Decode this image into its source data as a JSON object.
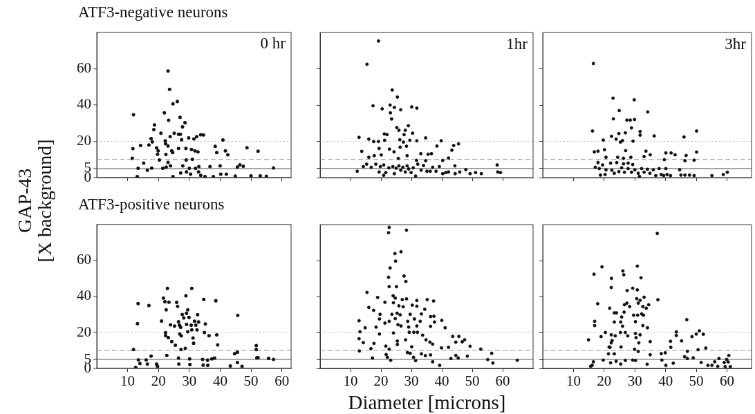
{
  "chart_data": [
    {
      "type": "scatter",
      "title": "ATF3-negative neurons",
      "ylabel": "GAP-43\n[X background]",
      "annotations": [
        "0 hr"
      ],
      "xlim": [
        0,
        63
      ],
      "ylim": [
        0,
        80
      ],
      "xticks": [
        10,
        20,
        30,
        40,
        50,
        60
      ],
      "yticks": [
        0,
        5,
        20,
        40,
        60
      ],
      "tick_labels": "y",
      "marker": "circle",
      "ref_lines": [
        {
          "axis": "y",
          "value": 5,
          "color": "#555555",
          "line_style": "solid"
        },
        {
          "axis": "y",
          "value": 10,
          "color": "#999999",
          "line_style": "dashed"
        },
        {
          "axis": "y",
          "value": 20,
          "color": "#bbbbbb",
          "line_style": "dotted"
        }
      ],
      "series": [
        {
          "color": "#111111",
          "x": [
            11.9,
            11.7,
            11.5,
            13.4,
            13.1,
            14.2,
            15.2,
            16.4,
            16.9,
            17.6,
            18,
            17.8,
            18.7,
            18.5,
            19.4,
            19.7,
            19.9,
            20.3,
            20.8,
            21.4,
            21.9,
            22.2,
            22.3,
            22.4,
            22.5,
            23.1,
            23.6,
            23.3,
            23.1,
            23.1,
            23.8,
            23.9,
            24.3,
            24.6,
            24.7,
            24.7,
            25.1,
            26.1,
            26.5,
            26.5,
            27,
            27.1,
            27.5,
            27.8,
            27.9,
            27.2,
            28.6,
            28.9,
            29,
            29.1,
            29.8,
            30,
            30.4,
            30.7,
            31,
            31.5,
            31.8,
            32,
            32.4,
            32.8,
            33,
            33.1,
            33.7,
            34.6,
            33.7,
            35.1,
            36.7,
            37.8,
            38.4,
            38.9,
            40.2,
            40.9,
            40,
            42,
            41.7,
            42.5,
            44.9,
            45.6,
            46.4,
            47.5,
            48.7,
            52.3,
            57.3,
            50,
            53,
            55
          ],
          "values": [
            34.6,
            16,
            10.7,
            5.2,
            0.6,
            17.7,
            8,
            4.1,
            18,
            21.5,
            19.7,
            5.3,
            29,
            26.5,
            16.4,
            12.9,
            14.8,
            9.7,
            24.5,
            5.2,
            35.7,
            20.3,
            18.7,
            12.8,
            5.8,
            58.7,
            48.6,
            31.6,
            17.4,
            8.4,
            22.6,
            6.5,
            14.8,
            13.8,
            40.6,
            0.6,
            24.5,
            41.9,
            23.9,
            16.1,
            33.2,
            23.9,
            20.9,
            28,
            6.5,
            2.6,
            30.3,
            16.1,
            9.7,
            3.2,
            21.9,
            5.2,
            1.9,
            15.5,
            10.1,
            21.3,
            14.8,
            5.2,
            22.6,
            14.2,
            3.2,
            6.1,
            23.6,
            23.5,
            1.3,
            0.6,
            6.1,
            0.6,
            17.2,
            13.8,
            1.9,
            20.8,
            6.5,
            1.9,
            14.8,
            12.6,
            0.9,
            5.8,
            7.1,
            6.3,
            16.5,
            14.6,
            5.4,
            1,
            1,
            0.8
          ]
        }
      ]
    },
    {
      "type": "scatter",
      "annotations": [
        "1hr"
      ],
      "xlim": [
        0,
        70
      ],
      "ylim": [
        0,
        80
      ],
      "xticks": [
        10,
        20,
        30,
        40,
        50,
        60
      ],
      "yticks": [
        0,
        5,
        20,
        40,
        60
      ],
      "tick_labels": false,
      "marker": "circle",
      "ref_lines": [
        {
          "axis": "y",
          "value": 5,
          "color": "#555555",
          "line_style": "solid"
        },
        {
          "axis": "y",
          "value": 10,
          "color": "#999999",
          "line_style": "dashed"
        },
        {
          "axis": "y",
          "value": 20,
          "color": "#bbbbbb",
          "line_style": "dotted"
        }
      ],
      "series": [
        {
          "color": "#111111",
          "x": [
            19.2,
            15.4,
            23.7,
            25.4,
            17.4,
            20.4,
            23,
            24.4,
            26.5,
            30.1,
            31.8,
            23.1,
            23.5,
            25.2,
            25.9,
            28,
            29,
            27.6,
            30.4,
            21.1,
            22,
            12.8,
            16,
            17.6,
            19.2,
            21.2,
            26.2,
            27.4,
            29.5,
            31.8,
            34.7,
            39.8,
            38.4,
            43.9,
            45.5,
            13.7,
            19.4,
            22.8,
            26.3,
            28.4,
            33.1,
            35.5,
            36.6,
            43.3,
            16,
            17.8,
            20.1,
            24.3,
            25.7,
            28.6,
            31.7,
            34.7,
            40.3,
            42.2,
            14.2,
            15.3,
            16.8,
            18.3,
            19.8,
            20.9,
            21.6,
            22.6,
            23.9,
            24.4,
            25,
            25.9,
            26.5,
            27.2,
            28,
            28.6,
            29.1,
            29.9,
            30.6,
            31.4,
            32.1,
            33.2,
            34,
            35.1,
            36.2,
            37,
            38.1,
            39.2,
            40.3,
            41.3,
            42.2,
            44.3,
            44.4,
            45.9,
            47.9,
            49.3,
            51.1,
            53,
            58.2,
            58.4,
            59.3,
            12.2,
            19.4,
            20.9
          ],
          "values": [
            75.3,
            62.5,
            48.3,
            44.4,
            39.6,
            37.9,
            40,
            38.7,
            37.4,
            39,
            38.3,
            35.7,
            32.3,
            27.6,
            26.1,
            26.1,
            28.6,
            23.7,
            24.5,
            24.1,
            23.7,
            22.2,
            21.2,
            19.9,
            19.9,
            20.6,
            20.9,
            19.6,
            20.6,
            20.3,
            21.9,
            20.3,
            17.4,
            17.7,
            18.6,
            14.5,
            16.1,
            15.7,
            16.8,
            17.3,
            13.2,
            12.9,
            13.2,
            15.1,
            11.2,
            12.1,
            12.5,
            14.2,
            10.6,
            12.1,
            9.5,
            9.3,
            9.5,
            10.8,
            6.1,
            7.4,
            5.7,
            7.4,
            6.1,
            7,
            2.8,
            5.4,
            6.1,
            2.2,
            5.2,
            6.5,
            4.1,
            5.7,
            3.1,
            6.5,
            4.8,
            2.8,
            5.4,
            0.9,
            7.4,
            4.1,
            6.7,
            3.5,
            3.5,
            5.7,
            3.5,
            6.1,
            2.2,
            2.8,
            3.1,
            6.5,
            2.2,
            3.1,
            4.4,
            2.2,
            2.8,
            2.2,
            7,
            3.1,
            2.8,
            3.5,
            3.1,
            1.3
          ]
        }
      ]
    },
    {
      "type": "scatter",
      "annotations": [
        "3hr"
      ],
      "xlim": [
        0,
        68
      ],
      "ylim": [
        0,
        80
      ],
      "xticks": [
        10,
        20,
        30,
        40,
        50,
        60
      ],
      "yticks": [
        0,
        5,
        20,
        40,
        60
      ],
      "tick_labels": false,
      "marker": "circle",
      "ref_lines": [
        {
          "axis": "y",
          "value": 5,
          "color": "#555555",
          "line_style": "solid"
        },
        {
          "axis": "y",
          "value": 10,
          "color": "#999999",
          "line_style": "dashed"
        },
        {
          "axis": "y",
          "value": 20,
          "color": "#bbbbbb",
          "line_style": "dotted"
        }
      ],
      "series": [
        {
          "color": "#111111",
          "x": [
            16.5,
            22.9,
            29.8,
            24.9,
            34.2,
            23,
            27.4,
            28.5,
            29.9,
            28.9,
            31.7,
            31.7,
            16.2,
            26.9,
            24.8,
            22.4,
            23.9,
            26,
            19.7,
            25.3,
            29.4,
            36.3,
            46,
            50.1,
            20.1,
            16.8,
            18,
            27,
            33.6,
            35,
            40.1,
            41.8,
            43.1,
            50.1,
            20.6,
            24.4,
            26.3,
            28.7,
            33,
            39.6,
            46.7,
            46.3,
            49.3,
            18,
            19.5,
            22.1,
            24.1,
            26.3,
            27.8,
            29.3,
            17.1,
            18.4,
            20.6,
            22.5,
            23.3,
            24.8,
            25.7,
            26.6,
            27.8,
            28.9,
            30,
            31.1,
            32.2,
            33,
            34.1,
            34.9,
            36,
            36.8,
            37.9,
            38.6,
            39.4,
            40.1,
            40.5,
            41.6,
            44.6,
            45,
            46.3,
            47.8,
            49.3,
            55.1,
            58.8,
            60.1,
            18.8,
            20.3,
            31.5
          ],
          "values": [
            62.9,
            43.8,
            42.9,
            37,
            36.2,
            32.4,
            31.7,
            31.7,
            32,
            27.4,
            25.4,
            23.4,
            25.7,
            24.7,
            24.3,
            22.8,
            21.2,
            20.4,
            20.7,
            19.6,
            20.1,
            23,
            22.4,
            25.7,
            15.4,
            14.2,
            14.6,
            14.9,
            14.6,
            12.6,
            13.6,
            13.6,
            12.6,
            14.1,
            11.2,
            11.2,
            10.7,
            11.2,
            11.6,
            9.9,
            12.2,
            9.3,
            9.6,
            8.3,
            7,
            8,
            8.3,
            7.6,
            8,
            7.2,
            5.7,
            5,
            4.3,
            4.1,
            2.4,
            3.3,
            5.4,
            3,
            5,
            3,
            4.3,
            2.4,
            5,
            3,
            4.6,
            2.4,
            4.3,
            1.1,
            5,
            1.7,
            1.1,
            5,
            1.7,
            1.1,
            4.3,
            1.4,
            1.4,
            1.4,
            1.1,
            1.1,
            1.7,
            3,
            1.4,
            1.7,
            0.7
          ]
        }
      ]
    },
    {
      "type": "scatter",
      "title": "ATF3-positive neurons",
      "xlim": [
        0,
        63
      ],
      "ylim": [
        0,
        80
      ],
      "xticks": [
        10,
        20,
        30,
        40,
        50,
        60
      ],
      "yticks": [
        0,
        5,
        20,
        40,
        60
      ],
      "marker": "circle",
      "ref_lines": [
        {
          "axis": "y",
          "value": 5,
          "color": "#555555",
          "line_style": "solid"
        },
        {
          "axis": "y",
          "value": 10,
          "color": "#999999",
          "line_style": "dashed"
        },
        {
          "axis": "y",
          "value": 20,
          "color": "#bbbbbb",
          "line_style": "dotted"
        }
      ],
      "series": [
        {
          "color": "#111111",
          "x": [
            11.9,
            13.4,
            13.2,
            13.5,
            14,
            12.6,
            16,
            16.4,
            17.6,
            16.9,
            19.4,
            19.7,
            21,
            21.6,
            22.1,
            22.9,
            23.4,
            22.5,
            22.3,
            22.3,
            22.7,
            23.2,
            23.9,
            24.3,
            25.2,
            25.5,
            25.9,
            26.2,
            26.5,
            26.8,
            27.2,
            26.5,
            26.6,
            26.9,
            27.4,
            27.3,
            27.7,
            28.2,
            28.7,
            28.9,
            29.1,
            29.5,
            29.1,
            29.5,
            29.9,
            30.2,
            30.1,
            30.6,
            30.8,
            30.8,
            31.2,
            31.4,
            31.7,
            32.1,
            32.5,
            32.7,
            33,
            34.3,
            34.5,
            34.7,
            34.9,
            35.2,
            35.9,
            36,
            36.4,
            37.3,
            38.2,
            38.6,
            38.9,
            39.2,
            43.3,
            44.7,
            45.6,
            45.7,
            45.6,
            47.1,
            51.7,
            51.7,
            51.9,
            52.3,
            55.7,
            57.3
          ],
          "values": [
            10.5,
            36,
            24.9,
            4.7,
            2.7,
            0.5,
            4.7,
            2.4,
            6.9,
            35,
            2.4,
            1.2,
            26.3,
            39.1,
            37.1,
            44.5,
            36.8,
            32.6,
            19.9,
            18.2,
            7.2,
            17.1,
            24.2,
            14.9,
            23.5,
            12.9,
            36.7,
            34.5,
            25.9,
            24,
            22.9,
            5.8,
            2.4,
            19.1,
            18.1,
            10.5,
            30,
            28.1,
            11.2,
            40.3,
            24.5,
            20.4,
            30.6,
            32.6,
            28.3,
            2.2,
            5.3,
            24,
            21.4,
            44.5,
            16.9,
            14,
            26.2,
            24,
            21.4,
            29.9,
            25.8,
            5,
            1.9,
            38.3,
            20,
            24.7,
            4.6,
            1.8,
            18.2,
            5.3,
            5.8,
            37.6,
            18.7,
            13.1,
            1.4,
            8.2,
            9.1,
            29.5,
            3.3,
            1.2,
            12.7,
            10.5,
            5.9,
            6,
            5.6,
            5
          ]
        }
      ]
    },
    {
      "type": "scatter",
      "xlabel": "Diameter [microns]",
      "xlim": [
        0,
        70
      ],
      "ylim": [
        0,
        80
      ],
      "xticks": [
        10,
        20,
        30,
        40,
        50,
        60
      ],
      "yticks": [
        0,
        5,
        20,
        40,
        60
      ],
      "tick_labels": "x",
      "marker": "circle",
      "ref_lines": [
        {
          "axis": "y",
          "value": 5,
          "color": "#555555",
          "line_style": "solid"
        },
        {
          "axis": "y",
          "value": 10,
          "color": "#999999",
          "line_style": "dashed"
        },
        {
          "axis": "y",
          "value": 20,
          "color": "#bbbbbb",
          "line_style": "dotted"
        }
      ],
      "series": [
        {
          "color": "#111111",
          "x": [
            22.7,
            22.5,
            28.4,
            26.6,
            24.6,
            24.8,
            23,
            22.5,
            27.6,
            28.2,
            22.7,
            25.1,
            15.4,
            18.9,
            24,
            24.7,
            27,
            28.4,
            21.3,
            31.8,
            35.2,
            37.3,
            16,
            17.6,
            24.1,
            25.9,
            27.3,
            30.3,
            31.8,
            34.4,
            19.7,
            23.6,
            25.3,
            26.3,
            29.6,
            33.3,
            36.3,
            37.4,
            12.8,
            19.5,
            22.7,
            24.7,
            28.8,
            31,
            32.9,
            37.6,
            40,
            21.3,
            25.6,
            26.6,
            29.1,
            18.4,
            31.8,
            36.3,
            41.1,
            14.8,
            13.1,
            24.1,
            29.3,
            30.8,
            32,
            33.7,
            19.5,
            43.6,
            45.6,
            44.6,
            46.7,
            47.5,
            12.8,
            14.2,
            25.4,
            28.1,
            34.8,
            36.1,
            37,
            21.6,
            17.7,
            25.4,
            30.1,
            49.3,
            39.9,
            42.2,
            52.8,
            12.9,
            16.7,
            22.7,
            28.7,
            29.6,
            33.3,
            34.6,
            36.3,
            44.6,
            56.4,
            17.2,
            21.7,
            22.1,
            23.2,
            30.7,
            31.4,
            37,
            39.3,
            43,
            45.4,
            48.4,
            55.1,
            56.8,
            64.8
          ],
          "values": [
            78.5,
            75.5,
            76.9,
            64.9,
            63.9,
            59.7,
            55.9,
            50.7,
            51.4,
            48.4,
            45.5,
            45.5,
            42.3,
            39.5,
            40.4,
            39.1,
            38.3,
            38.7,
            36.8,
            37.8,
            38.3,
            37.5,
            33.9,
            32.3,
            36.5,
            34.8,
            34.3,
            35.2,
            34.6,
            32.9,
            30.1,
            30.1,
            30.7,
            29.8,
            30.1,
            30.3,
            28.8,
            29,
            26.5,
            27.5,
            26.2,
            27.7,
            26.2,
            27.5,
            26.2,
            25.8,
            26.7,
            25.2,
            24.3,
            23.6,
            23,
            23,
            23.6,
            23.4,
            22.6,
            22.6,
            20.4,
            19.7,
            20.1,
            20.1,
            20.1,
            18.5,
            19.1,
            17.8,
            17.8,
            14.6,
            14.8,
            15.9,
            16.5,
            14.3,
            15.2,
            15.9,
            15.9,
            14.6,
            13.5,
            12.4,
            13.9,
            13.3,
            12,
            12.3,
            11.4,
            11.7,
            10.7,
            9.7,
            11,
            10.7,
            8.8,
            8.4,
            8.1,
            7.1,
            7.5,
            7.2,
            8.4,
            5.8,
            7.7,
            6.2,
            4.5,
            6.2,
            4.3,
            3.7,
            1.7,
            5.5,
            5.8,
            6.8,
            4.9,
            3,
            4.5
          ]
        }
      ]
    },
    {
      "type": "scatter",
      "xlim": [
        0,
        68
      ],
      "ylim": [
        0,
        80
      ],
      "xticks": [
        10,
        20,
        30,
        40,
        50,
        60
      ],
      "yticks": [
        0,
        5,
        20,
        40,
        60
      ],
      "tick_labels": "x",
      "marker": "circle",
      "ref_lines": [
        {
          "axis": "y",
          "value": 5,
          "color": "#555555",
          "line_style": "solid"
        },
        {
          "axis": "y",
          "value": 10,
          "color": "#999999",
          "line_style": "dashed"
        },
        {
          "axis": "y",
          "value": 20,
          "color": "#bbbbbb",
          "line_style": "dotted"
        }
      ],
      "series": [
        {
          "color": "#111111",
          "x": [
            37.3,
            19.3,
            30.8,
            16.7,
            26.1,
            26.4,
            22.4,
            32,
            22.3,
            29.3,
            30.8,
            27.5,
            30.6,
            33,
            31.1,
            31.7,
            37.5,
            17.9,
            26.6,
            27.4,
            28.3,
            32.6,
            33.7,
            34.5,
            21.8,
            23.3,
            24,
            26.5,
            25.7,
            29.6,
            30.9,
            32.2,
            32.8,
            16.9,
            16.9,
            23.3,
            25.4,
            26,
            30.2,
            32.6,
            34.1,
            46.9,
            25.3,
            26.9,
            20.4,
            22.3,
            23.6,
            27.7,
            30.2,
            31.7,
            30.4,
            19,
            14.9,
            22.6,
            22.3,
            31.3,
            35,
            43.5,
            43.5,
            41.6,
            45.2,
            48.6,
            50,
            51,
            52.3,
            21.6,
            21.9,
            25.5,
            29.9,
            31.1,
            41.7,
            53.1,
            50.6,
            21.4,
            23.3,
            35,
            38.6,
            39.9,
            47.1,
            46.2,
            47.1,
            49,
            16.5,
            19.7,
            22.1,
            23.9,
            25.4,
            26.9,
            29.3,
            30.2,
            34,
            38.8,
            40.1,
            42.5,
            51.6,
            53.8,
            55.1,
            56,
            57.4,
            57,
            59.1,
            59.9,
            60.4,
            60.6,
            61.1,
            59.4,
            15.6,
            16.1
          ],
          "values": [
            75.1,
            56.5,
            56.9,
            52.4,
            54.2,
            52.1,
            50.1,
            50.4,
            45,
            44.6,
            43.7,
            43.3,
            38.8,
            39.6,
            36.3,
            37.9,
            38.2,
            36,
            35.4,
            36.3,
            34.4,
            34.4,
            33.5,
            35.4,
            33.5,
            30.9,
            30.9,
            31.3,
            28.6,
            29.6,
            29.6,
            30.3,
            29.6,
            26.2,
            23.8,
            25.8,
            25.8,
            23.5,
            26,
            23.8,
            22.6,
            27.1,
            20,
            20,
            20,
            18.7,
            18.1,
            18.1,
            19.4,
            18.7,
            17.1,
            17.7,
            15.9,
            15.5,
            14.2,
            14.2,
            14.9,
            20.3,
            18.3,
            15.1,
            15.3,
            17.7,
            19.1,
            20.9,
            19,
            11.9,
            11.7,
            11.9,
            10.6,
            9.4,
            11.7,
            11.3,
            10.4,
            8.1,
            8.1,
            7.6,
            8.2,
            8.7,
            9.5,
            6.5,
            5.5,
            5.9,
            3.7,
            4.6,
            3.1,
            4,
            2.4,
            4.4,
            4.6,
            4.4,
            2.3,
            4.6,
            1.7,
            2.9,
            3.3,
            1.7,
            1.7,
            3.7,
            5.5,
            1.2,
            3.3,
            5,
            3.6,
            7.2,
            1,
            1,
            1.2,
            1.7
          ]
        }
      ]
    }
  ]
}
